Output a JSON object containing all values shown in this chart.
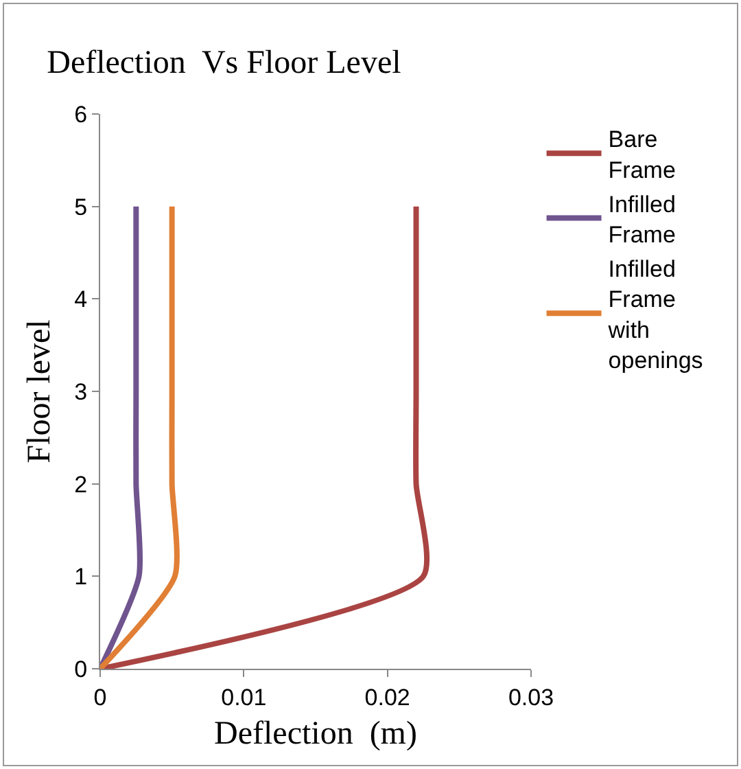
{
  "chart_data": {
    "type": "line",
    "title": "Deflection  Vs Floor Level",
    "xlabel": "Deflection  (m)",
    "ylabel": "Floor level",
    "xlim": [
      0,
      0.03
    ],
    "xticks": [
      0,
      0.01,
      0.02,
      0.03
    ],
    "ylim": [
      0,
      6
    ],
    "yticks": [
      0,
      1,
      2,
      3,
      4,
      5,
      6
    ],
    "grid": false,
    "legend": "right",
    "marker": "none",
    "line_style": "solid",
    "series": [
      {
        "name": "Bare Frame",
        "color": "#a94442",
        "x": [
          0,
          0.0225,
          0.022,
          0.022,
          0.022,
          0.022
        ],
        "values": [
          0,
          1,
          2,
          3,
          4,
          5
        ]
      },
      {
        "name": "Infilled Frame",
        "color": "#6f548e",
        "x": [
          0,
          0.0027,
          0.0025,
          0.0025,
          0.0025,
          0.0025
        ],
        "values": [
          0,
          1,
          2,
          3,
          4,
          5
        ]
      },
      {
        "name": "Infilled Frame with openings",
        "color": "#e07f35",
        "x": [
          0,
          0.0052,
          0.005,
          0.005,
          0.005,
          0.005
        ],
        "values": [
          0,
          1,
          2,
          3,
          4,
          5
        ]
      }
    ]
  }
}
